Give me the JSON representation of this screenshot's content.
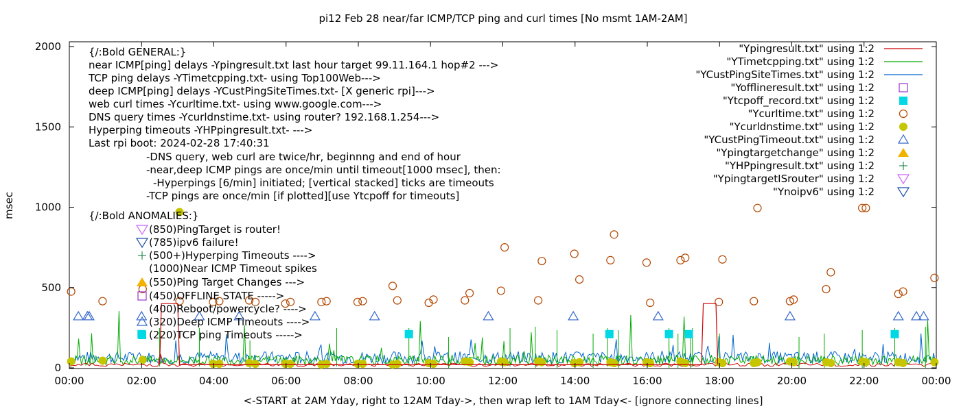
{
  "chart_data": {
    "type": "scatter",
    "title": "pi12 Feb 28  near/far ICMP/TCP ping and curl times [No msmt 1AM-2AM]",
    "xlabel": "<-START at 2AM Yday, right to 12AM Tday->, then wrap left to 1AM Tday<- [ignore connecting lines]",
    "ylabel": "msec",
    "xlim": [
      0,
      24
    ],
    "ylim": [
      0,
      2000
    ],
    "x_ticks": [
      "00:00",
      "02:00",
      "04:00",
      "06:00",
      "08:00",
      "10:00",
      "12:00",
      "14:00",
      "16:00",
      "18:00",
      "20:00",
      "22:00",
      "00:00"
    ],
    "y_ticks": [
      "0",
      "500",
      "1000",
      "1500",
      "2000"
    ],
    "grid": false,
    "legend_position": "top-right",
    "legend": [
      {
        "label": "\"Ypingresult.txt\" using 1:2",
        "color": "#cc0000",
        "marker": "line"
      },
      {
        "label": "\"YTimetcpping.txt\" using 1:2",
        "color": "#00aa00",
        "marker": "line"
      },
      {
        "label": "\"YCustPingSiteTimes.txt\" using 1:2",
        "color": "#0066cc",
        "marker": "line"
      },
      {
        "label": "\"Yofflineresult.txt\" using 1:2",
        "color": "#9933cc",
        "marker": "open-square"
      },
      {
        "label": "\"Ytcpoff_record.txt\" using 1:2",
        "color": "#00d8e6",
        "marker": "filled-square"
      },
      {
        "label": "\"Ycurltime.txt\" using 1:2",
        "color": "#b34700",
        "marker": "open-circle"
      },
      {
        "label": "\"Ycurldnstime.txt\" using 1:2",
        "color": "#c6c600",
        "marker": "filled-circle"
      },
      {
        "label": "\"YCustPingTimeout.txt\" using 1:2",
        "color": "#3366cc",
        "marker": "open-triangle-up"
      },
      {
        "label": "\"Ypingtargetchange\" using 1:2",
        "color": "#f2b200",
        "marker": "filled-triangle-up"
      },
      {
        "label": "\"YHPpingresult.txt\" using 1:2",
        "color": "#007a33",
        "marker": "plus"
      },
      {
        "label": "\"YpingtargetISrouter\" using 1:2",
        "color": "#cc66ff",
        "marker": "open-triangle-down"
      },
      {
        "label": "\"Ynoipv6\" using 1:2",
        "color": "#1f4fa8",
        "marker": "open-triangle-down"
      }
    ],
    "annotations": [
      "{/:Bold GENERAL:}",
      "near ICMP[ping] delays -Ypingresult.txt last hour target 99.11.164.1 hop#2 --->",
      "TCP ping delays -YTimetcpping.txt- using Top100Web--->",
      "deep ICMP[ping] delays -YCustPingSiteTimes.txt- [X generic rpi]--->",
      "web curl times -Ycurltime.txt- using www.google.com--->",
      "DNS query times -Ycurldnstime.txt- using router? 192.168.1.254--->",
      "Hyperping timeouts -YHPpingresult.txt- --->",
      "Last rpi boot: 2024-02-28 17:40:31",
      "-DNS query, web curl are twice/hr, beginnng and end of hour",
      "-near,deep ICMP pings are once/min until timeout[1000 msec], then:",
      "-Hyperpings [6/min] initiated; [vertical stacked] ticks are timeouts",
      "-TCP pings are once/min [if plotted][use Ytcpoff for timeouts]",
      "{/:Bold ANOMALIES:}",
      "(850)PingTarget is router!",
      "(785)ipv6 failure!",
      "(500+)Hyperping Timeouts ---->",
      "(1000)Near ICMP Timeout spikes",
      "(550)Ping Target Changes --->",
      "(450)OFFLINE STATE ----->",
      "(400)Reboot/powercycle? ---->",
      "(320)Deep ICMP Timeouts ---->",
      "(220)TCP ping Timeouts ----->"
    ],
    "series": [
      {
        "name": "\"Ycurltime.txt\" using 1:2",
        "marker": "open-circle",
        "color": "#b34700",
        "points": [
          [
            0.05,
            475
          ],
          [
            0.92,
            415
          ],
          [
            2.03,
            490
          ],
          [
            3.05,
            415
          ],
          [
            3.98,
            410
          ],
          [
            4.15,
            415
          ],
          [
            4.98,
            420
          ],
          [
            5.15,
            410
          ],
          [
            5.98,
            400
          ],
          [
            6.12,
            410
          ],
          [
            6.98,
            410
          ],
          [
            7.12,
            415
          ],
          [
            7.98,
            410
          ],
          [
            8.12,
            415
          ],
          [
            8.95,
            510
          ],
          [
            9.08,
            420
          ],
          [
            9.95,
            405
          ],
          [
            10.08,
            425
          ],
          [
            10.95,
            420
          ],
          [
            11.08,
            465
          ],
          [
            11.95,
            480
          ],
          [
            12.05,
            750
          ],
          [
            12.98,
            420
          ],
          [
            13.08,
            665
          ],
          [
            13.98,
            710
          ],
          [
            14.12,
            550
          ],
          [
            14.98,
            670
          ],
          [
            15.08,
            830
          ],
          [
            15.98,
            655
          ],
          [
            16.08,
            405
          ],
          [
            16.92,
            670
          ],
          [
            17.05,
            685
          ],
          [
            17.98,
            410
          ],
          [
            18.08,
            675
          ],
          [
            18.95,
            415
          ],
          [
            19.05,
            995
          ],
          [
            19.95,
            415
          ],
          [
            20.05,
            425
          ],
          [
            20.95,
            490
          ],
          [
            21.08,
            595
          ],
          [
            21.95,
            995
          ],
          [
            22.05,
            995
          ],
          [
            22.95,
            460
          ],
          [
            23.08,
            475
          ],
          [
            23.95,
            560
          ]
        ]
      },
      {
        "name": "\"Ycurldnstime.txt\" using 1:2",
        "marker": "filled-circle",
        "color": "#c6c600",
        "points": [
          [
            0.05,
            40
          ],
          [
            0.92,
            45
          ],
          [
            2.03,
            50
          ],
          [
            3.05,
            970
          ],
          [
            3.98,
            25
          ],
          [
            4.15,
            25
          ],
          [
            4.98,
            30
          ],
          [
            5.15,
            25
          ],
          [
            5.98,
            25
          ],
          [
            6.12,
            25
          ],
          [
            6.98,
            20
          ],
          [
            7.12,
            25
          ],
          [
            7.98,
            25
          ],
          [
            8.12,
            25
          ],
          [
            8.95,
            20
          ],
          [
            9.08,
            25
          ],
          [
            9.95,
            30
          ],
          [
            10.08,
            25
          ],
          [
            10.95,
            40
          ],
          [
            11.08,
            35
          ],
          [
            11.95,
            40
          ],
          [
            12.05,
            35
          ],
          [
            12.98,
            40
          ],
          [
            13.08,
            35
          ],
          [
            13.98,
            30
          ],
          [
            14.12,
            35
          ],
          [
            14.98,
            35
          ],
          [
            15.08,
            30
          ],
          [
            15.98,
            35
          ],
          [
            16.08,
            30
          ],
          [
            16.92,
            40
          ],
          [
            17.05,
            30
          ],
          [
            17.98,
            35
          ],
          [
            18.08,
            30
          ],
          [
            18.95,
            30
          ],
          [
            19.05,
            35
          ],
          [
            19.95,
            40
          ],
          [
            20.05,
            35
          ],
          [
            20.95,
            35
          ],
          [
            21.08,
            30
          ],
          [
            21.95,
            40
          ],
          [
            22.05,
            35
          ],
          [
            22.95,
            35
          ],
          [
            23.08,
            30
          ],
          [
            23.95,
            35
          ]
        ]
      },
      {
        "name": "\"YCustPingTimeout.txt\" using 1:2",
        "marker": "open-triangle-up",
        "color": "#3366cc",
        "points": [
          [
            0.25,
            320
          ],
          [
            0.5,
            320
          ],
          [
            0.55,
            320
          ],
          [
            2.0,
            320
          ],
          [
            3.6,
            320
          ],
          [
            4.7,
            320
          ],
          [
            6.8,
            320
          ],
          [
            8.45,
            320
          ],
          [
            11.6,
            320
          ],
          [
            13.95,
            320
          ],
          [
            16.3,
            320
          ],
          [
            19.95,
            320
          ],
          [
            22.95,
            320
          ],
          [
            23.45,
            320
          ],
          [
            23.65,
            320
          ]
        ]
      },
      {
        "name": "\"Ytcpoff_record.txt\" using 1:2",
        "marker": "filled-square",
        "color": "#00d8e6",
        "points": [
          [
            2.0,
            210
          ],
          [
            9.4,
            210
          ],
          [
            14.95,
            210
          ],
          [
            16.6,
            210
          ],
          [
            17.15,
            210
          ],
          [
            22.85,
            210
          ]
        ]
      },
      {
        "name": "\"Ypingresult.txt\" using 1:2",
        "marker": "line",
        "color": "#cc0000",
        "points": [
          [
            2.5,
            20
          ],
          [
            2.55,
            400
          ],
          [
            3.0,
            400
          ],
          [
            3.05,
            20
          ],
          [
            17.5,
            20
          ],
          [
            17.55,
            400
          ],
          [
            17.9,
            400
          ],
          [
            17.95,
            20
          ]
        ]
      }
    ]
  }
}
